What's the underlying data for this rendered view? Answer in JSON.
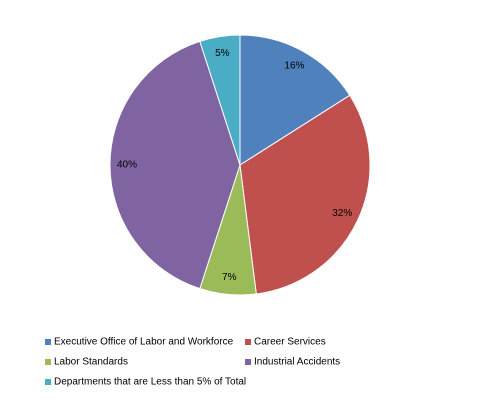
{
  "chart_data": {
    "type": "pie",
    "categories": [
      "Executive Office of Labor and Workforce",
      "Career Services",
      "Labor Standards",
      "Industrial Accidents",
      "Departments that are Less than 5% of Total"
    ],
    "values": [
      16,
      32,
      7,
      40,
      5
    ],
    "value_labels": [
      "16%",
      "32%",
      "7%",
      "40%",
      "5%"
    ],
    "colors": [
      "#4f81bd",
      "#c0504d",
      "#9bbb59",
      "#8064a2",
      "#4bacc6"
    ],
    "legend": "bottom"
  }
}
